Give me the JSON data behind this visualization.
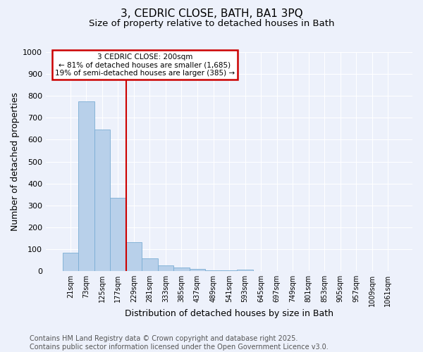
{
  "title1": "3, CEDRIC CLOSE, BATH, BA1 3PQ",
  "title2": "Size of property relative to detached houses in Bath",
  "xlabel": "Distribution of detached houses by size in Bath",
  "ylabel": "Number of detached properties",
  "categories": [
    "21sqm",
    "73sqm",
    "125sqm",
    "177sqm",
    "229sqm",
    "281sqm",
    "333sqm",
    "385sqm",
    "437sqm",
    "489sqm",
    "541sqm",
    "593sqm",
    "645sqm",
    "697sqm",
    "749sqm",
    "801sqm",
    "853sqm",
    "905sqm",
    "957sqm",
    "1009sqm",
    "1061sqm"
  ],
  "values": [
    83,
    775,
    645,
    335,
    133,
    57,
    25,
    18,
    10,
    5,
    5,
    8,
    0,
    0,
    0,
    0,
    0,
    0,
    0,
    0,
    0
  ],
  "bar_color": "#b8d0ea",
  "bar_edge_color": "#7aadd4",
  "vline_x": 3.5,
  "vline_color": "#cc0000",
  "ann_line1": "3 CEDRIC CLOSE: 200sqm",
  "ann_line2": "← 81% of detached houses are smaller (1,685)",
  "ann_line3": "19% of semi-detached houses are larger (385) →",
  "ann_facecolor": "#ffffff",
  "ann_edgecolor": "#cc0000",
  "ylim_max": 1000,
  "yticks": [
    0,
    100,
    200,
    300,
    400,
    500,
    600,
    700,
    800,
    900,
    1000
  ],
  "bg_color": "#edf1fb",
  "grid_color": "#ffffff",
  "footnote1": "Contains HM Land Registry data © Crown copyright and database right 2025.",
  "footnote2": "Contains public sector information licensed under the Open Government Licence v3.0."
}
